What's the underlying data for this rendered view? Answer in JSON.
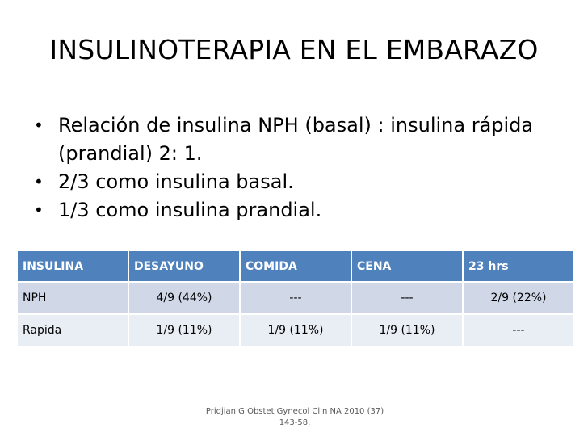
{
  "title": "INSULINOTERAPIA EN EL EMBARAZO",
  "bullets": [
    "Relación de insulina NPH (basal) : insulina rápida (prandial)  2: 1.",
    "2/3 como insulina basal.",
    "1/3 como insulina prandial."
  ],
  "table": {
    "headers": [
      "INSULINA",
      "DESAYUNO",
      "COMIDA",
      "CENA",
      "23 hrs"
    ],
    "rows": [
      [
        "NPH",
        "4/9 (44%)",
        "---",
        "---",
        "2/9 (22%)"
      ],
      [
        "Rapida",
        "1/9 (11%)",
        "1/9 (11%)",
        "1/9 (11%)",
        "---"
      ]
    ]
  },
  "source": "Pridjian G Obstet Gynecol Clin NA 2010 (37) 143-58.",
  "colors": {
    "header": "#4f81bd",
    "row_odd": "#d0d8e8",
    "row_even": "#e9edf4"
  }
}
